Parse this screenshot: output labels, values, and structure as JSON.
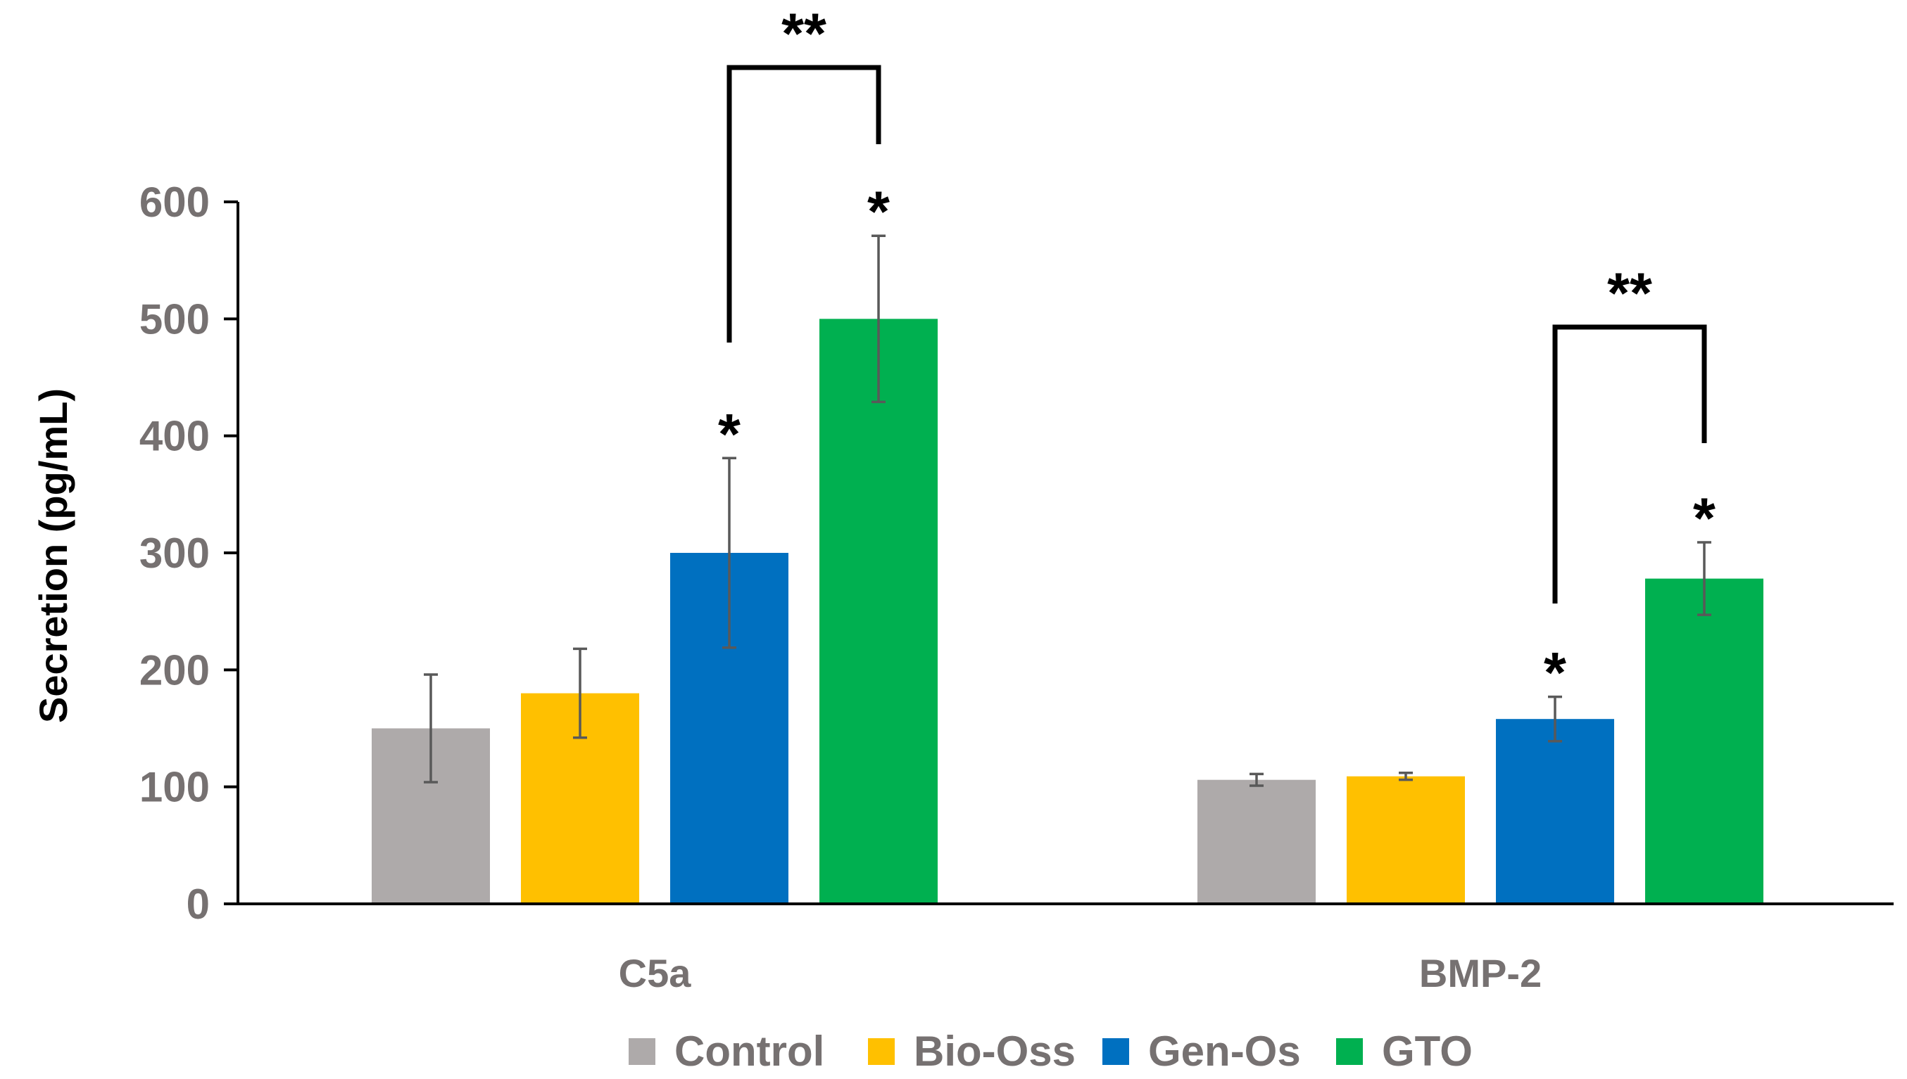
{
  "chart_data": {
    "type": "bar",
    "title": "",
    "xlabel": "",
    "ylabel": "Secretion (pg/mL)",
    "ylim": [
      0,
      600
    ],
    "yticks": [
      0,
      100,
      200,
      300,
      400,
      500,
      600
    ],
    "ytick_labels": [
      "0",
      "100",
      "200",
      "300",
      "400",
      "500",
      "600"
    ],
    "categories": [
      "C5a",
      "BMP-2"
    ],
    "series": [
      {
        "name": "Control",
        "color": "#AEAAAA",
        "values": [
          150,
          106
        ],
        "errors": [
          46,
          5
        ]
      },
      {
        "name": "Bio-Oss",
        "color": "#FFC000",
        "values": [
          180,
          109
        ],
        "errors": [
          38,
          3
        ]
      },
      {
        "name": "Gen-Os",
        "color": "#0070C0",
        "values": [
          300,
          158
        ],
        "errors": [
          81,
          19
        ]
      },
      {
        "name": "GTO",
        "color": "#00B050",
        "values": [
          500,
          278
        ],
        "errors": [
          71,
          31
        ]
      }
    ],
    "single_marks": [
      {
        "category": 0,
        "series": 2,
        "label": "*"
      },
      {
        "category": 0,
        "series": 3,
        "label": "*"
      },
      {
        "category": 1,
        "series": 2,
        "label": "*"
      },
      {
        "category": 1,
        "series": 3,
        "label": "*"
      }
    ],
    "brackets": [
      {
        "category": 0,
        "from_series": 2,
        "to_series": 3,
        "label": "**"
      },
      {
        "category": 1,
        "from_series": 2,
        "to_series": 3,
        "label": "**"
      }
    ],
    "legend_position": "bottom-center",
    "grid": false
  }
}
